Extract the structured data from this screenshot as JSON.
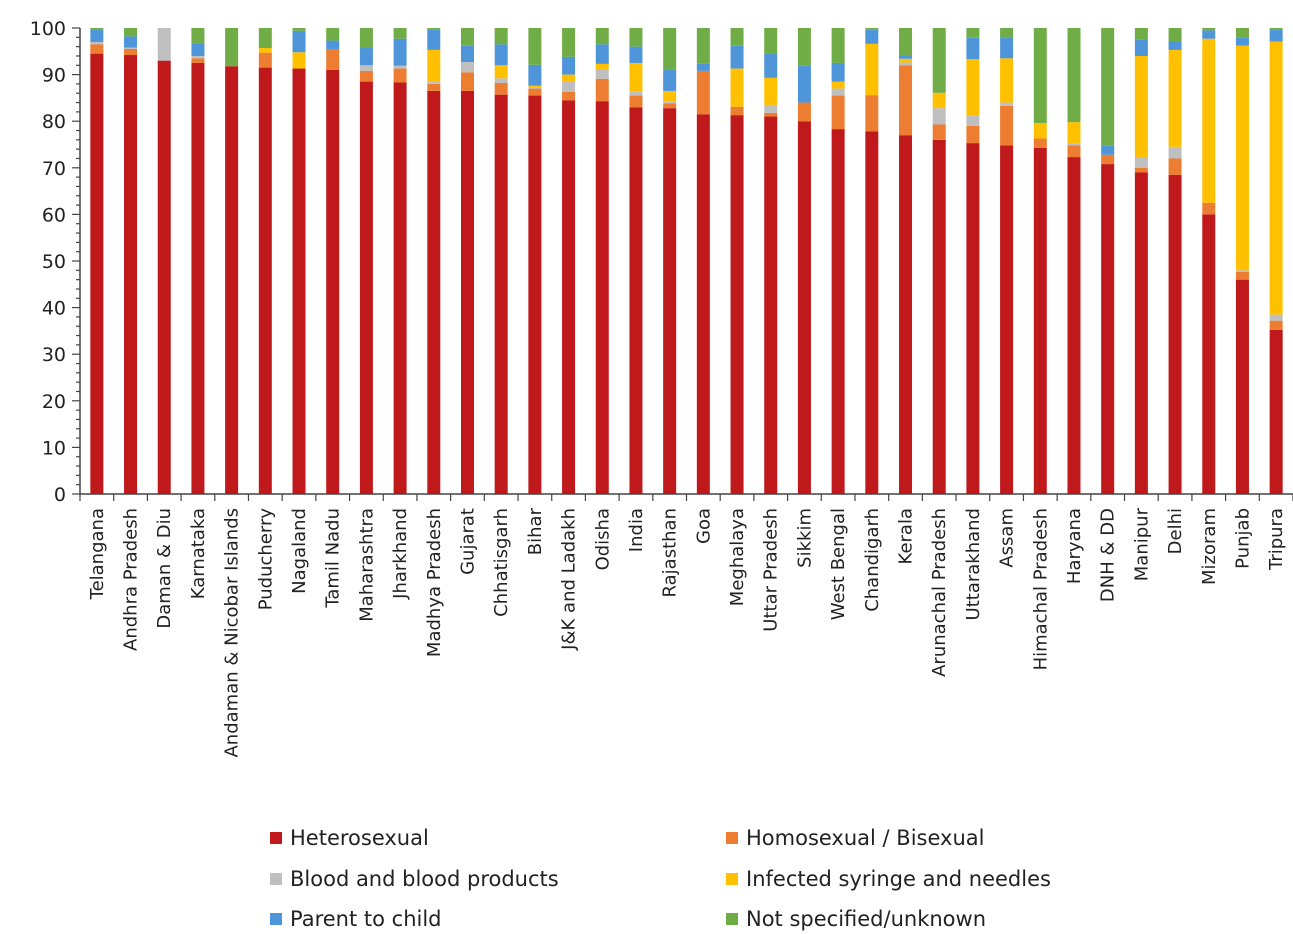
{
  "chart_data": {
    "type": "bar",
    "stacked": true,
    "title": "",
    "xlabel": "",
    "ylabel": "",
    "ylim": [
      0,
      100
    ],
    "yticks": [
      0,
      10,
      20,
      30,
      40,
      50,
      60,
      70,
      80,
      90,
      100
    ],
    "legend_position": "bottom",
    "categories": [
      "Telangana",
      "Andhra Pradesh",
      "Daman & Diu",
      "Karnataka",
      "Andaman & Nicobar Islands",
      "Puducherry",
      "Nagaland",
      "Tamil Nadu",
      "Maharashtra",
      "Jharkhand",
      "Madhya Pradesh",
      "Gujarat",
      "Chhatisgarh",
      "Bihar",
      "J&K and Ladakh",
      "Odisha",
      "India",
      "Rajasthan",
      "Goa",
      "Meghalaya",
      "Uttar Pradesh",
      "Sikkim",
      "West Bengal",
      "Chandigarh",
      "Kerala",
      "Arunachal Pradesh",
      "Uttarakhand",
      "Assam",
      "Himachal Pradesh",
      "Haryana",
      "DNH & DD",
      "Manipur",
      "Delhi",
      "Mizoram",
      "Punjab",
      "Tripura"
    ],
    "series": [
      {
        "name": "Heterosexual",
        "color": "#C0191C",
        "values": [
          94.5,
          94.2,
          93,
          92.5,
          91.8,
          91.5,
          91.3,
          91,
          88.5,
          88.3,
          86.5,
          86.5,
          85.7,
          85.5,
          84.5,
          84.3,
          83,
          82.8,
          81.5,
          81.3,
          81,
          80,
          78.3,
          77.8,
          77,
          76,
          75.3,
          74.8,
          74.3,
          72.3,
          70.8,
          69,
          68.5,
          60,
          46,
          35.2
        ]
      },
      {
        "name": "Homosexual / Bisexual",
        "color": "#ED7D31",
        "values": [
          2,
          1.3,
          0,
          1,
          0,
          3.2,
          0,
          4.5,
          2.3,
          3,
          1.5,
          4,
          2.5,
          1.5,
          1.8,
          4.8,
          2.5,
          1,
          9.3,
          1.8,
          0.8,
          4,
          7.2,
          7.8,
          15,
          3.3,
          3.7,
          8.5,
          2,
          2.5,
          2,
          1,
          3.5,
          2.5,
          1.7,
          2
        ]
      },
      {
        "name": "Blood and blood products",
        "color": "#BFBFBF",
        "values": [
          0.5,
          0.3,
          7,
          0.5,
          0,
          0,
          0,
          0,
          1.2,
          0.6,
          0.5,
          2.2,
          1,
          0.3,
          2.2,
          2,
          0.8,
          0.5,
          0,
          0,
          1.7,
          0,
          1.5,
          0,
          0.6,
          3.5,
          2.3,
          0.7,
          0,
          0.5,
          0,
          2.2,
          2.5,
          0,
          0.3,
          1.3
        ]
      },
      {
        "name": "Infected syringe and needles",
        "color": "#FFC000",
        "values": [
          0,
          0,
          0,
          0,
          0,
          1,
          3.5,
          0,
          0,
          0,
          6.8,
          0,
          2.8,
          0.3,
          1.5,
          1.2,
          6.2,
          2.2,
          0,
          8.2,
          5.8,
          0,
          1.5,
          11,
          0.8,
          3.3,
          12,
          9.5,
          3.3,
          4.5,
          0,
          21.8,
          20.8,
          35.2,
          48.2,
          58.6
        ]
      },
      {
        "name": "Parent to child",
        "color": "#4E95D9",
        "values": [
          2.7,
          2.4,
          0,
          2.7,
          0,
          0,
          4.6,
          1.8,
          3.7,
          5.8,
          4.4,
          3.5,
          4.5,
          4.5,
          3.8,
          4.2,
          3.5,
          4.5,
          1.5,
          4.9,
          5.3,
          8,
          4,
          3,
          0.6,
          0,
          4.6,
          4.5,
          0,
          0,
          1.9,
          3.5,
          1.8,
          1.8,
          1.8,
          2.6
        ]
      },
      {
        "name": "Not specified/unknown",
        "color": "#70AD47",
        "values": [
          0.3,
          1.8,
          0,
          3.3,
          8.2,
          4.3,
          0.6,
          2.7,
          4.3,
          2.3,
          0.3,
          3.8,
          3.5,
          7.9,
          6.2,
          3.5,
          4,
          9,
          7.7,
          3.8,
          5.4,
          8,
          7.5,
          0.4,
          6,
          13.9,
          2.1,
          2,
          20.4,
          20.2,
          25.3,
          2.5,
          2.9,
          0.5,
          2,
          0.3
        ]
      }
    ]
  }
}
